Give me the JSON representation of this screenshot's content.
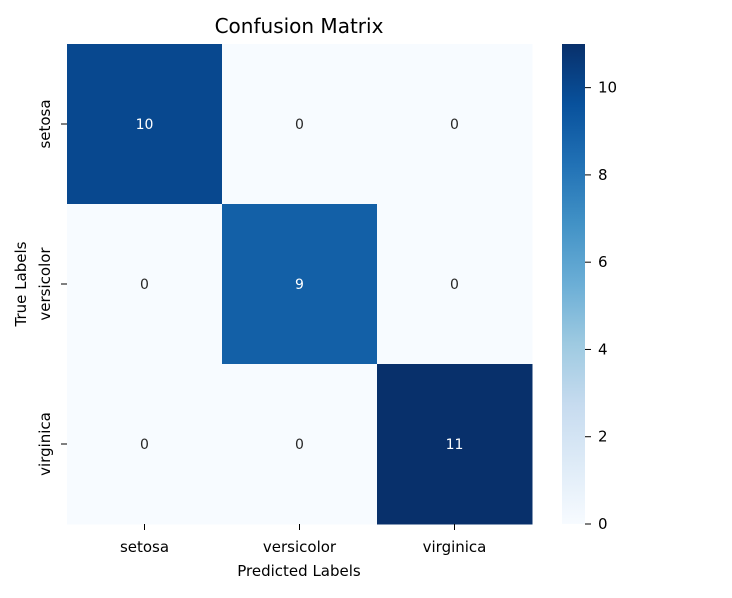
{
  "chart_data": {
    "type": "heatmap",
    "title": "Confusion Matrix",
    "xlabel": "Predicted Labels",
    "ylabel": "True Labels",
    "x_categories": [
      "setosa",
      "versicolor",
      "virginica"
    ],
    "y_categories": [
      "setosa",
      "versicolor",
      "virginica"
    ],
    "values": [
      [
        10,
        0,
        0
      ],
      [
        0,
        9,
        0
      ],
      [
        0,
        0,
        11
      ]
    ],
    "colormap": "Blues",
    "colorbar": {
      "range": [
        0,
        11
      ],
      "ticks": [
        0,
        2,
        4,
        6,
        8,
        10
      ]
    },
    "colors": {
      "low": "#f7fbff",
      "high": "#08306b"
    }
  }
}
